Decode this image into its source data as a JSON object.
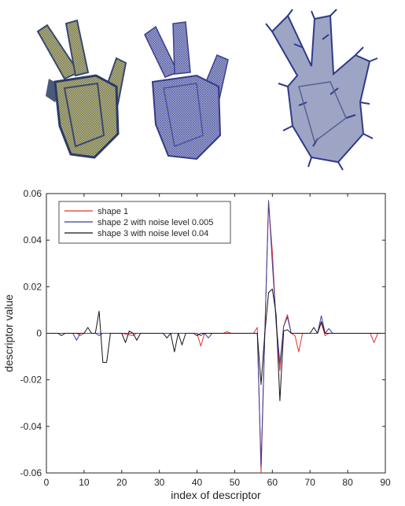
{
  "chart_data": {
    "type": "line",
    "title": "",
    "xlabel": "index of descriptor",
    "ylabel": "descriptor value",
    "xlim": [
      0,
      90
    ],
    "ylim": [
      -0.06,
      0.06
    ],
    "xticks": [
      "0",
      "10",
      "20",
      "30",
      "40",
      "50",
      "60",
      "70",
      "80",
      "90"
    ],
    "yticks": [
      "-0.06",
      "-0.04",
      "-0.02",
      "0",
      "0.02",
      "0.04",
      "0.06"
    ],
    "grid": false,
    "legend_position": "top-left",
    "series": [
      {
        "name": "shape 1",
        "color": "#e8312a",
        "values": [
          [
            0,
            0
          ],
          [
            3,
            0
          ],
          [
            8,
            0
          ],
          [
            9,
            -0.001
          ],
          [
            10,
            0
          ],
          [
            20,
            0
          ],
          [
            23,
            -0.001
          ],
          [
            24,
            0
          ],
          [
            40,
            0
          ],
          [
            41,
            -0.0055
          ],
          [
            42,
            0
          ],
          [
            47,
            0
          ],
          [
            48,
            0.0007
          ],
          [
            49,
            0
          ],
          [
            55,
            0
          ],
          [
            56,
            0.0025
          ],
          [
            57,
            -0.06
          ],
          [
            58,
            0.0
          ],
          [
            59,
            0.056
          ],
          [
            60,
            0.035
          ],
          [
            61,
            0.004
          ],
          [
            62,
            -0.016
          ],
          [
            63,
            0.003
          ],
          [
            64,
            0.008
          ],
          [
            65,
            0
          ],
          [
            66,
            -0.001
          ],
          [
            67,
            -0.008
          ],
          [
            68,
            0
          ],
          [
            72,
            0
          ],
          [
            73,
            0.0045
          ],
          [
            74,
            -0.001
          ],
          [
            75,
            0
          ],
          [
            86,
            0
          ],
          [
            87,
            -0.004
          ],
          [
            88,
            0
          ],
          [
            90,
            0
          ]
        ]
      },
      {
        "name": "shape 2 with noise level 0.005",
        "color": "#3b3b9c",
        "values": [
          [
            0,
            0
          ],
          [
            7,
            0
          ],
          [
            8,
            -0.003
          ],
          [
            9,
            0
          ],
          [
            13,
            0
          ],
          [
            14,
            -0.001
          ],
          [
            15,
            0
          ],
          [
            40,
            0
          ],
          [
            41,
            -0.001
          ],
          [
            42,
            0
          ],
          [
            43,
            -0.002
          ],
          [
            44,
            0
          ],
          [
            56,
            0
          ],
          [
            57,
            -0.057
          ],
          [
            58,
            0.0
          ],
          [
            59,
            0.057
          ],
          [
            60,
            0.03
          ],
          [
            61,
            0.005
          ],
          [
            62,
            -0.013
          ],
          [
            63,
            0.003
          ],
          [
            64,
            0.007
          ],
          [
            65,
            0
          ],
          [
            72,
            0
          ],
          [
            73,
            0.0075
          ],
          [
            74,
            0.0
          ],
          [
            75,
            0.002
          ],
          [
            76,
            0
          ],
          [
            90,
            0
          ]
        ]
      },
      {
        "name": "shape 3 with noise level 0.04",
        "color": "#141414",
        "values": [
          [
            0,
            0
          ],
          [
            3,
            0
          ],
          [
            4,
            -0.001
          ],
          [
            5,
            0
          ],
          [
            10,
            0
          ],
          [
            11,
            0.0025
          ],
          [
            12,
            0
          ],
          [
            13,
            0
          ],
          [
            14,
            0.0095
          ],
          [
            15,
            -0.0125
          ],
          [
            16,
            -0.0125
          ],
          [
            17,
            0
          ],
          [
            20,
            0
          ],
          [
            21,
            -0.004
          ],
          [
            22,
            0.001
          ],
          [
            23,
            0
          ],
          [
            24,
            -0.003
          ],
          [
            25,
            0
          ],
          [
            31,
            0
          ],
          [
            32,
            -0.002
          ],
          [
            33,
            0
          ],
          [
            34,
            -0.008
          ],
          [
            35,
            0
          ],
          [
            36,
            -0.005
          ],
          [
            37,
            0
          ],
          [
            39,
            0
          ],
          [
            40,
            -0.001
          ],
          [
            41,
            0
          ],
          [
            50,
            0
          ],
          [
            56,
            0
          ],
          [
            57,
            -0.022
          ],
          [
            58,
            0.0
          ],
          [
            59,
            0.0175
          ],
          [
            60,
            0.019
          ],
          [
            61,
            0.008
          ],
          [
            62,
            -0.029
          ],
          [
            63,
            0.001
          ],
          [
            64,
            0.0015
          ],
          [
            65,
            0
          ],
          [
            70,
            0
          ],
          [
            71,
            0.0025
          ],
          [
            72,
            0.0
          ],
          [
            73,
            0.005
          ],
          [
            74,
            0.0
          ],
          [
            75,
            0
          ],
          [
            90,
            0
          ]
        ]
      }
    ]
  }
}
